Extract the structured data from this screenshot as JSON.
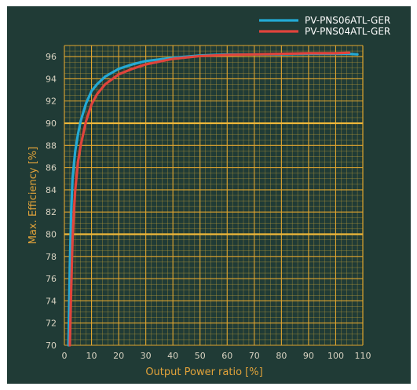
{
  "chart_data": {
    "type": "line",
    "title": "",
    "xlabel": "Output Power ratio [%]",
    "ylabel": "Max. Efficiency [%]",
    "xlim": [
      0,
      110
    ],
    "ylim": [
      70,
      97
    ],
    "x_ticks": [
      "0",
      "10",
      "20",
      "30",
      "40",
      "50",
      "60",
      "70",
      "80",
      "90",
      "100",
      "110"
    ],
    "y_ticks": [
      "70",
      "72",
      "74",
      "76",
      "78",
      "80",
      "82",
      "84",
      "86",
      "88",
      "90",
      "92",
      "94",
      "96"
    ],
    "grid": true,
    "legend_position": "top-right",
    "series": [
      {
        "name": "PV-PNS06ATL-GER",
        "color": "#23a9d4",
        "x": [
          1.5,
          2,
          2.5,
          3,
          4,
          5,
          6,
          8,
          10,
          12,
          15,
          20,
          25,
          30,
          40,
          50,
          60,
          70,
          80,
          90,
          100,
          105,
          108
        ],
        "y": [
          70,
          77,
          82,
          85,
          87.5,
          89,
          90.2,
          91.8,
          92.9,
          93.5,
          94.2,
          94.9,
          95.3,
          95.6,
          95.9,
          96.1,
          96.2,
          96.2,
          96.2,
          96.25,
          96.25,
          96.25,
          96.2
        ]
      },
      {
        "name": "PV-PNS04ATL-GER",
        "color": "#e0443c",
        "x": [
          2,
          2.5,
          3,
          3.5,
          4,
          5,
          6,
          8,
          10,
          12,
          15,
          20,
          25,
          30,
          40,
          50,
          60,
          70,
          80,
          90,
          100,
          105
        ],
        "y": [
          70,
          75,
          79.5,
          82,
          84,
          86.5,
          88,
          90.2,
          91.7,
          92.6,
          93.5,
          94.4,
          94.9,
          95.3,
          95.8,
          96.05,
          96.15,
          96.2,
          96.25,
          96.3,
          96.3,
          96.35
        ]
      }
    ]
  }
}
